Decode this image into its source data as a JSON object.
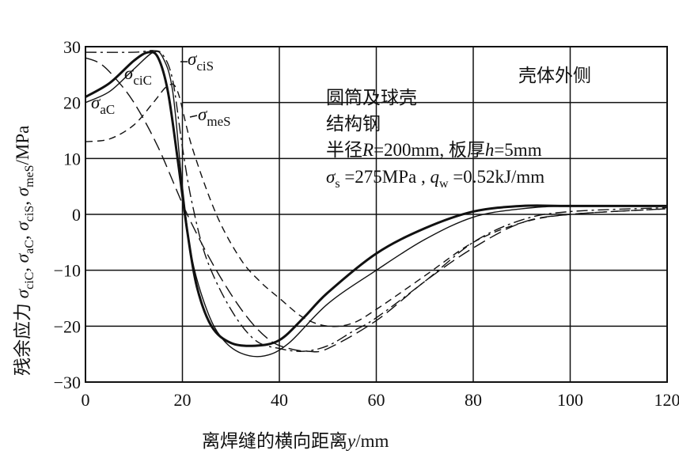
{
  "chart_data": {
    "type": "line",
    "xlabel": "离焊缝的横向距离y/mm",
    "ylabel": "残余应力 σciC, σaC, σciS, σmeS/MPa",
    "xlim": [
      0,
      120
    ],
    "ylim": [
      -30,
      30
    ],
    "xticks": [
      0,
      20,
      40,
      60,
      80,
      100,
      120
    ],
    "yticks": [
      30,
      20,
      10,
      0,
      -10,
      -20,
      -30
    ],
    "grid": true,
    "annotations": [
      "壳体外侧",
      "圆筒及球壳",
      "结构钢",
      "半径R=200mm, 板厚h=5mm",
      "σs=275MPa , qw=0.52kJ/mm"
    ],
    "series": [
      {
        "name": "σciC",
        "style": "thick-solid",
        "x": [
          0,
          5,
          10,
          13,
          15,
          17,
          19,
          21,
          23,
          26,
          30,
          35,
          40,
          45,
          50,
          60,
          70,
          80,
          90,
          100,
          120
        ],
        "y": [
          21,
          23.5,
          27.5,
          29,
          28,
          22,
          10,
          -3,
          -13,
          -20,
          -23,
          -23.5,
          -22.5,
          -18.5,
          -14,
          -7,
          -2.5,
          0.5,
          1.5,
          1.5,
          1.5
        ]
      },
      {
        "name": "σaC",
        "style": "thin-solid",
        "x": [
          0,
          5,
          10,
          14,
          16,
          18,
          20,
          22,
          25,
          28,
          32,
          37,
          42,
          50,
          60,
          70,
          80,
          90,
          100,
          120
        ],
        "y": [
          20,
          22,
          26,
          29,
          28,
          22,
          5,
          -8,
          -17,
          -22,
          -24.8,
          -25.3,
          -23,
          -16,
          -10,
          -4.5,
          -0.5,
          1,
          1.5,
          1.5
        ]
      },
      {
        "name": "σciS",
        "style": "dash-dot",
        "x": [
          0,
          10,
          14,
          16,
          18,
          20,
          22,
          25,
          30,
          35,
          40,
          45,
          50,
          55,
          60,
          70,
          80,
          90,
          100,
          120
        ],
        "y": [
          29,
          29,
          29.3,
          28.5,
          24,
          12,
          2,
          -8,
          -17,
          -22.5,
          -24,
          -24.5,
          -23.5,
          -21,
          -18.5,
          -12,
          -5,
          -1,
          0.5,
          1.2
        ]
      },
      {
        "name": "σmeS",
        "style": "dashed",
        "x": [
          0,
          5,
          10,
          14,
          17,
          19,
          22,
          27,
          32,
          36,
          40,
          45,
          50,
          55,
          60,
          70,
          80,
          90,
          100,
          120
        ],
        "y": [
          13,
          13.5,
          16,
          20,
          23,
          22,
          12,
          0,
          -8,
          -12,
          -15,
          -18.5,
          -20,
          -19.5,
          -17,
          -11,
          -5,
          -1.5,
          0,
          1
        ]
      },
      {
        "name": "unlabeled",
        "style": "long-dashed",
        "x": [
          0,
          3,
          6,
          10,
          15,
          21,
          27,
          33,
          38,
          42,
          46,
          50,
          60,
          70,
          80,
          90,
          100,
          120
        ],
        "y": [
          28,
          27,
          24.5,
          20,
          12,
          0,
          -10,
          -18,
          -22.5,
          -24,
          -24.5,
          -24,
          -19,
          -12,
          -6,
          -1.5,
          0,
          1
        ]
      }
    ],
    "labels": {
      "σciC": "σciC",
      "σaC": "σaC",
      "σciS": "σciS",
      "σmeS": "σmeS"
    }
  },
  "text": {
    "corner": "壳体外侧",
    "l1": "圆筒及球壳",
    "l2": "结构钢",
    "l3a": "半径",
    "l3R": "R",
    "l3b": "=200mm, 板厚",
    "l3h": "h",
    "l3c": "=5mm",
    "ylabel_cn": "残余应力",
    "xlabel_cn": "离焊缝的横向距离",
    "xlabel_unit": "y/mm"
  }
}
